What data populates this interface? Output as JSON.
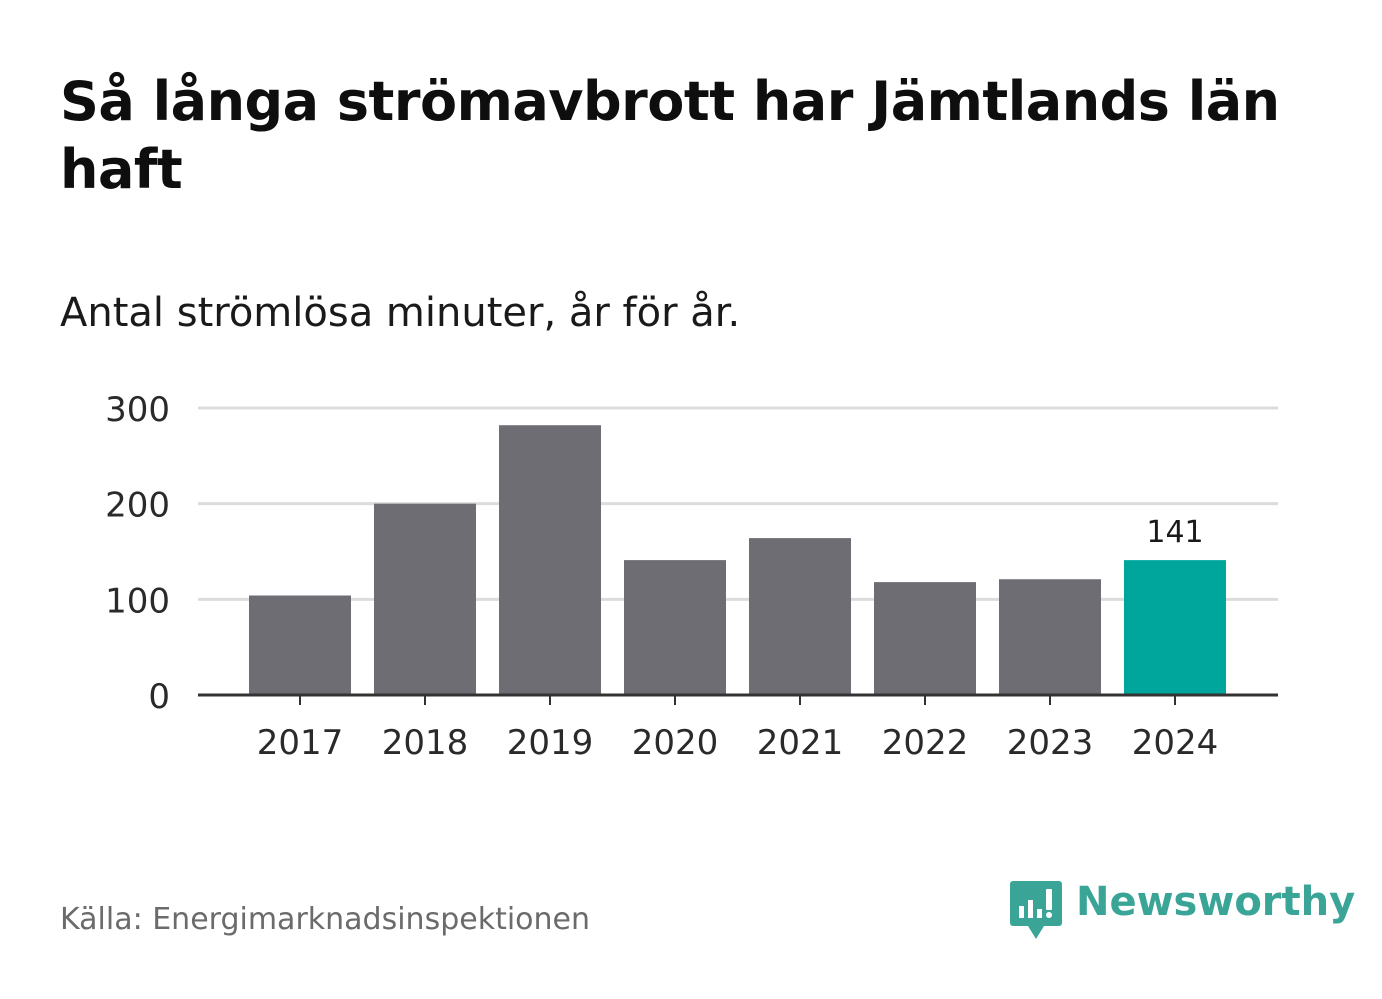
{
  "header": {
    "title": "Så långa strömavbrott har Jämtlands län haft",
    "subtitle": "Antal strömlösa minuter, år för år."
  },
  "footer": {
    "source": "Källa: Energimarknadsinspektionen",
    "brand": "Newsworthy"
  },
  "colors": {
    "bar": "#6e6d73",
    "highlight": "#00a69b",
    "grid": "#dcdcdc",
    "axis": "#333333",
    "brand": "#3aa597"
  },
  "icons": {
    "brand_logo": "newsworthy-chart-bubble-icon"
  },
  "chart_data": {
    "type": "bar",
    "title": "Så långa strömavbrott har Jämtlands län haft",
    "subtitle": "Antal strömlösa minuter, år för år.",
    "xlabel": "",
    "ylabel": "",
    "categories": [
      "2017",
      "2018",
      "2019",
      "2020",
      "2021",
      "2022",
      "2023",
      "2024"
    ],
    "values": [
      104,
      200,
      282,
      141,
      164,
      118,
      121,
      141
    ],
    "highlight_index": 7,
    "data_labels": [
      {
        "index": 7,
        "text": "141"
      }
    ],
    "ylim": [
      0,
      300
    ],
    "yticks": [
      0,
      100,
      200,
      300
    ],
    "grid": true,
    "legend": "none"
  }
}
